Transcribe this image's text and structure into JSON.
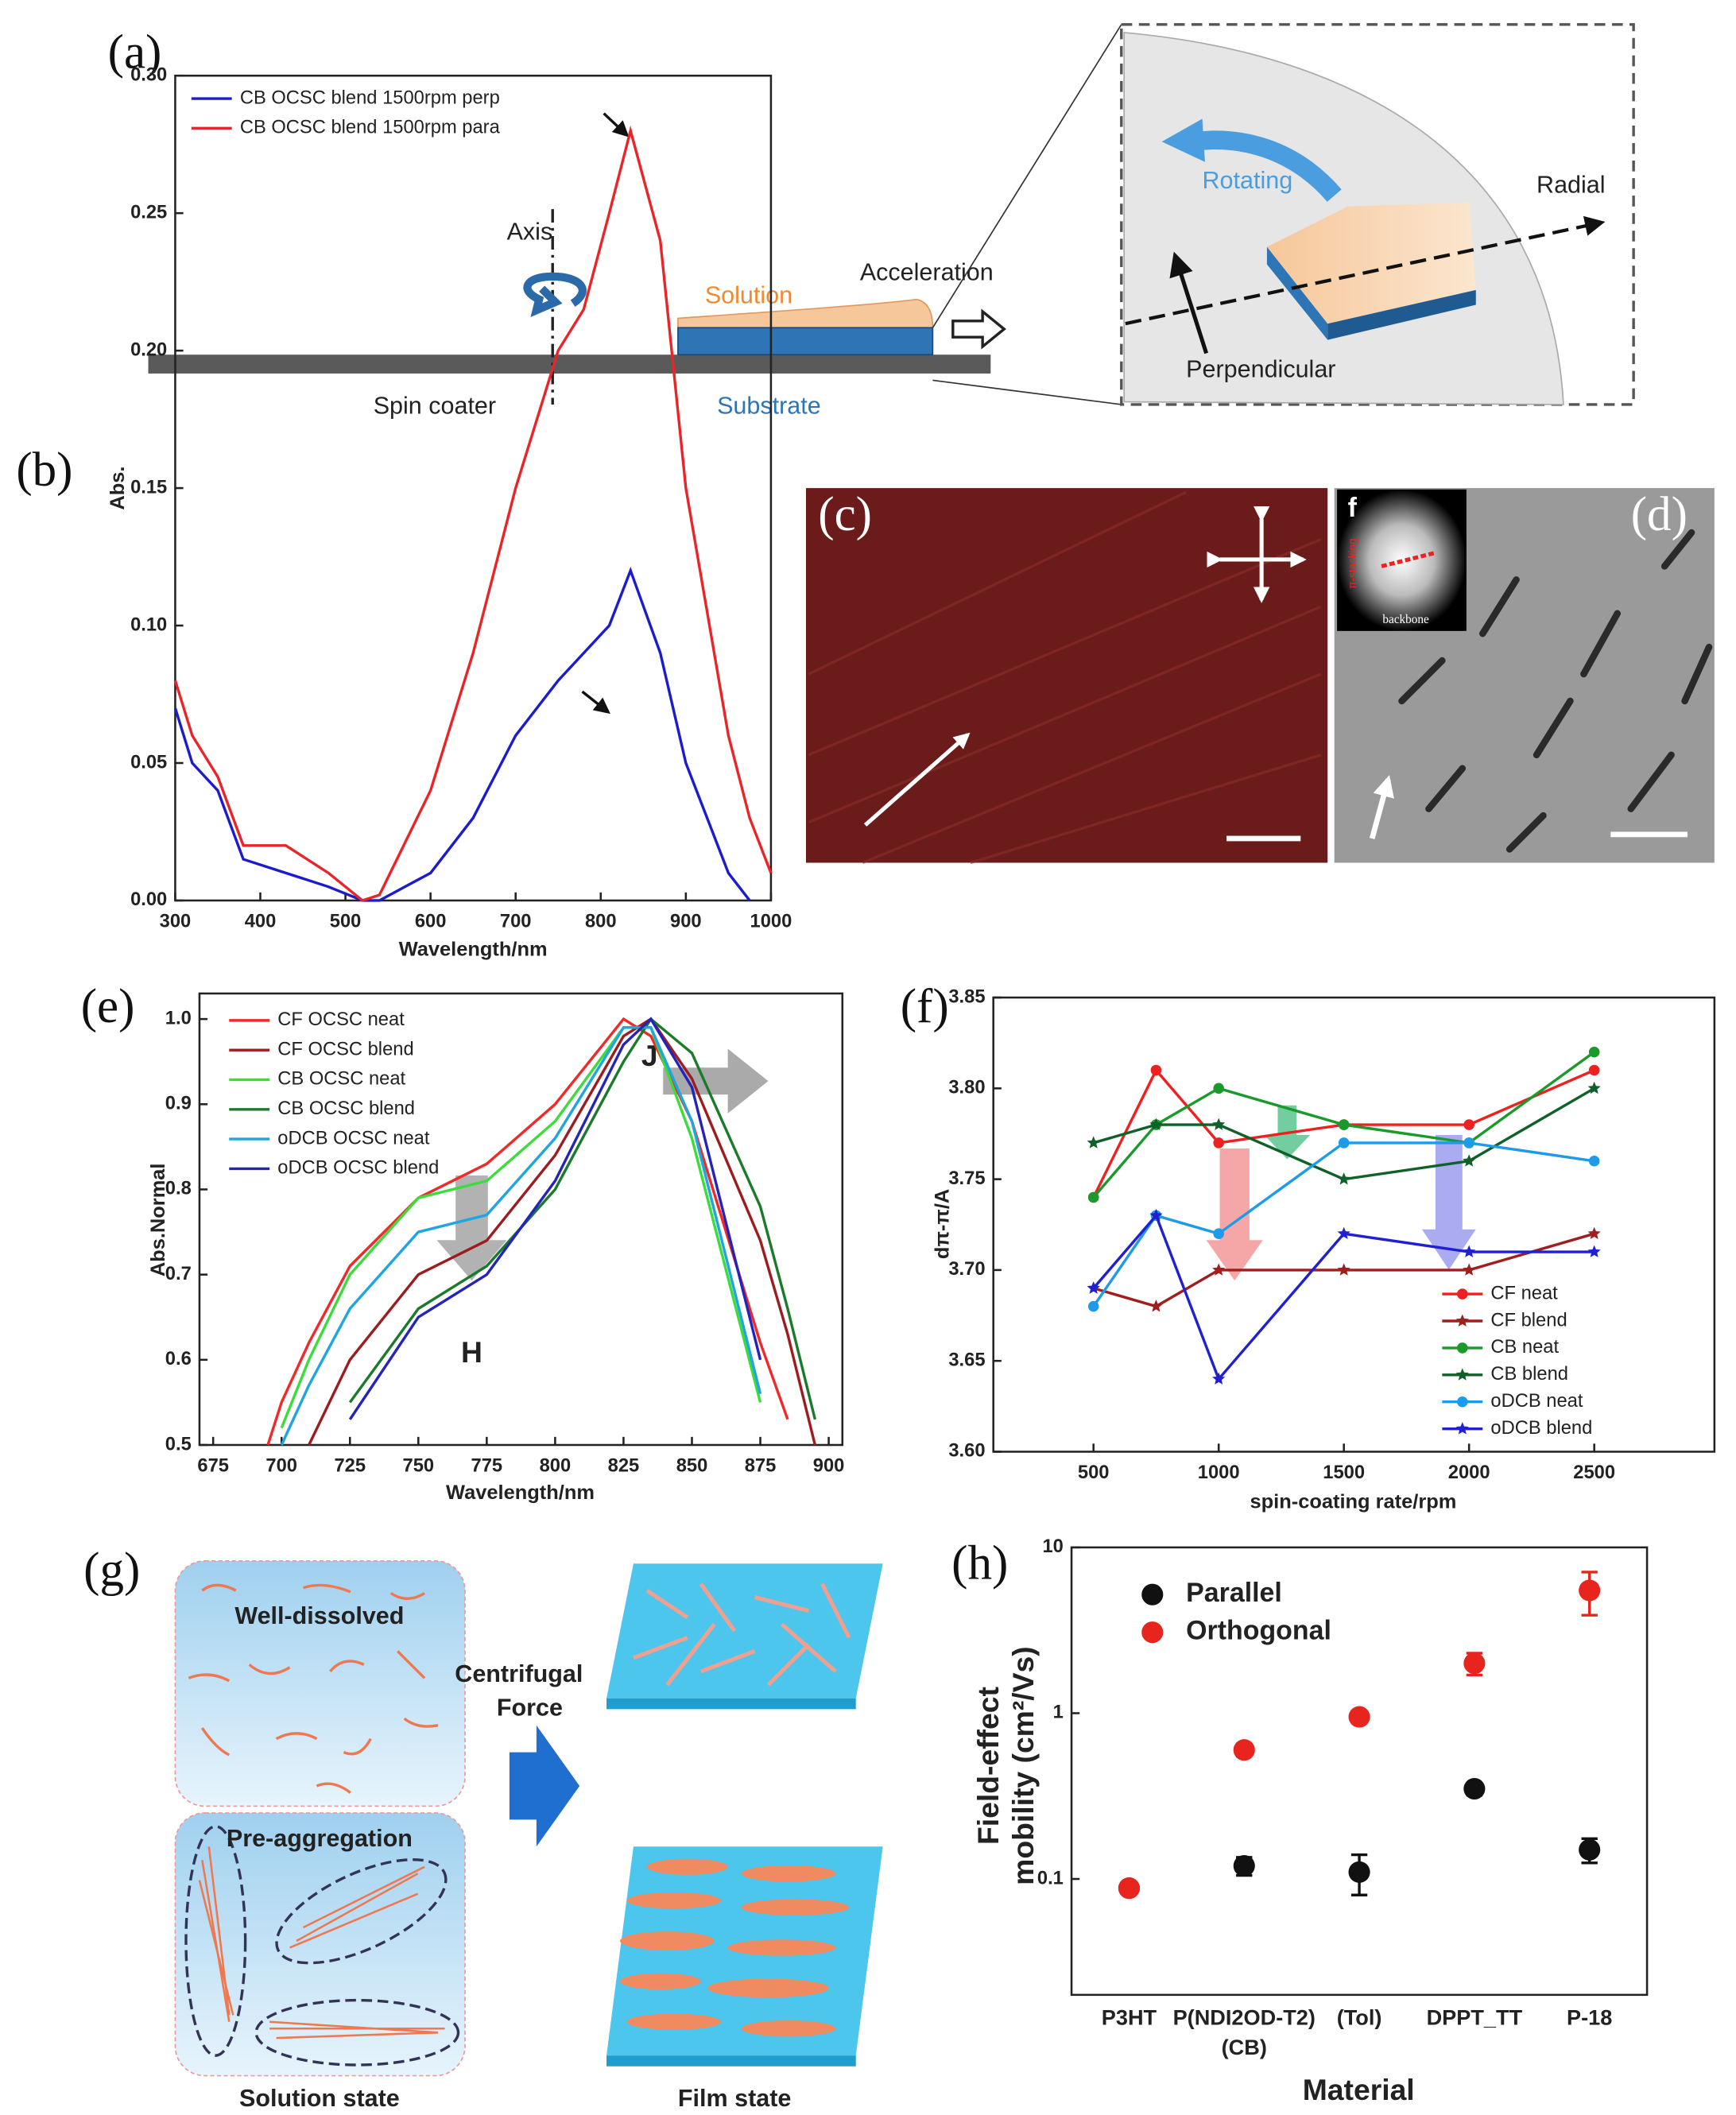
{
  "chart_data": [
    {
      "type": "line",
      "panel": "(b)",
      "xlabel": "Wavelength/nm",
      "ylabel": "Abs.",
      "x": [
        300,
        320,
        350,
        380,
        430,
        480,
        520,
        540,
        600,
        650,
        700,
        750,
        780,
        810,
        835,
        870,
        900,
        950,
        975,
        1000
      ],
      "series": [
        {
          "name": "CB OCSC blend 1500rpm perp",
          "color": "#1c1ccc",
          "values": [
            0.07,
            0.05,
            0.04,
            0.015,
            0.01,
            0.005,
            0,
            0,
            0.01,
            0.03,
            0.06,
            0.08,
            0.09,
            0.1,
            0.12,
            0.09,
            0.05,
            0.01,
            0,
            null
          ]
        },
        {
          "name": "CB OCSC blend 1500rpm para",
          "color": "#e8262a",
          "values": [
            0.08,
            0.06,
            0.045,
            0.02,
            0.02,
            0.01,
            0,
            0.002,
            0.04,
            0.09,
            0.15,
            0.2,
            0.215,
            0.25,
            0.28,
            0.24,
            0.15,
            0.06,
            0.03,
            0.01
          ]
        }
      ],
      "xlim": [
        300,
        1000
      ],
      "ylim": [
        0,
        0.3
      ],
      "xticks": [
        300,
        400,
        500,
        600,
        700,
        800,
        900,
        1000
      ],
      "yticks": [
        {
          "value": 0,
          "label": "0.00"
        },
        0.05,
        {
          "value": 0.1,
          "label": "0.10"
        },
        0.15,
        {
          "value": 0.2,
          "label": "0.20"
        },
        0.25,
        {
          "value": 0.3,
          "label": "0.30"
        }
      ],
      "legend": "upper left"
    },
    {
      "type": "line",
      "panel": "(e)",
      "xlabel": "Wavelength/nm",
      "ylabel": "Abs.Normal",
      "annotations": [
        "J",
        "H"
      ],
      "x": [
        695,
        700,
        710,
        725,
        750,
        775,
        800,
        825,
        835,
        850,
        875,
        885,
        895
      ],
      "series": [
        {
          "name": "CF OCSC neat",
          "color": "#ee2a2a",
          "values": [
            0.5,
            0.55,
            0.62,
            0.71,
            0.79,
            0.83,
            0.9,
            1,
            0.98,
            0.88,
            0.62,
            0.53,
            null
          ]
        },
        {
          "name": "CF OCSC blend",
          "color": "#9b1d20",
          "values": [
            null,
            null,
            0.5,
            0.6,
            0.7,
            0.74,
            0.84,
            0.98,
            1,
            0.93,
            0.74,
            0.63,
            0.5
          ]
        },
        {
          "name": "CB OCSC neat",
          "color": "#3ddc3d",
          "values": [
            null,
            0.52,
            0.6,
            0.7,
            0.79,
            0.81,
            0.88,
            0.99,
            0.99,
            0.86,
            0.55,
            null,
            null
          ]
        },
        {
          "name": "CB OCSC blend",
          "color": "#1c7a2c",
          "values": [
            null,
            null,
            null,
            0.55,
            0.66,
            0.71,
            0.8,
            0.95,
            1,
            0.96,
            0.78,
            0.66,
            0.53
          ]
        },
        {
          "name": "oDCB OCSC neat",
          "color": "#1fa5e0",
          "values": [
            null,
            0.5,
            0.57,
            0.66,
            0.75,
            0.77,
            0.86,
            0.99,
            0.99,
            0.88,
            0.56,
            null,
            null
          ]
        },
        {
          "name": "oDCB OCSC blend",
          "color": "#2424b8",
          "values": [
            null,
            null,
            null,
            0.53,
            0.65,
            0.7,
            0.81,
            0.97,
            1,
            0.92,
            0.6,
            null,
            null
          ]
        }
      ],
      "xlim": [
        670,
        905
      ],
      "ylim": [
        0.5,
        1.03
      ],
      "xticks": [
        675,
        700,
        725,
        750,
        775,
        800,
        825,
        850,
        875,
        900
      ],
      "yticks": [
        0.5,
        0.6,
        0.7,
        0.8,
        0.9,
        {
          "value": 1,
          "label": "1.0"
        }
      ],
      "legend": "upper left"
    },
    {
      "type": "line",
      "panel": "(f)",
      "xlabel": "spin-coating rate/rpm",
      "ylabel": "dπ-π/A",
      "x": [
        500,
        750,
        1000,
        1500,
        2000,
        2500
      ],
      "series": [
        {
          "name": "CF neat",
          "color": "#ee2020",
          "marker": "circle",
          "values": [
            3.74,
            3.81,
            3.77,
            3.78,
            3.78,
            3.81
          ]
        },
        {
          "name": "CF blend",
          "color": "#a01e1e",
          "marker": "star",
          "values": [
            3.69,
            3.68,
            3.7,
            3.7,
            3.7,
            3.72
          ]
        },
        {
          "name": "CB neat",
          "color": "#1a9a2a",
          "marker": "circle",
          "values": [
            3.74,
            3.78,
            3.8,
            3.78,
            3.77,
            3.82
          ]
        },
        {
          "name": "CB blend",
          "color": "#10602a",
          "marker": "star",
          "values": [
            3.77,
            3.78,
            3.78,
            3.75,
            3.76,
            3.8
          ]
        },
        {
          "name": "oDCB neat",
          "color": "#1e9be8",
          "marker": "circle",
          "values": [
            3.68,
            3.73,
            3.72,
            3.77,
            3.77,
            3.76
          ]
        },
        {
          "name": "oDCB blend",
          "color": "#2020d0",
          "marker": "star",
          "values": [
            3.69,
            3.73,
            3.64,
            3.72,
            3.71,
            3.71
          ]
        }
      ],
      "xlim": [
        100,
        2980
      ],
      "ylim": [
        3.6,
        3.85
      ],
      "xticks": [
        500,
        1000,
        1500,
        2000,
        2500
      ],
      "yticks": [
        {
          "value": 3.6,
          "label": "3.60"
        },
        3.65,
        {
          "value": 3.7,
          "label": "3.70"
        },
        3.75,
        {
          "value": 3.8,
          "label": "3.80"
        },
        3.85
      ],
      "legend": "lower right"
    },
    {
      "type": "scatter",
      "panel": "(h)",
      "xlabel": "Material",
      "ylabel": [
        "Field-effect",
        "mobility (cm²/Vs)"
      ],
      "log_y": true,
      "categories": [
        "P3HT",
        "P(NDI2OD-T2)",
        "(Tol)",
        "DPPT_TT",
        "P-18"
      ],
      "category_note": "(CB)",
      "series": [
        {
          "name": "Parallel",
          "color": "#111111",
          "values": [
            0.088,
            0.12,
            0.11,
            0.35,
            0.15
          ],
          "errors": [
            0.005,
            0.015,
            0.03,
            0.03,
            0.025
          ]
        },
        {
          "name": "Orthogonal",
          "color": "#e8241e",
          "values": [
            0.088,
            0.6,
            0.95,
            2,
            5.5
          ],
          "errors": [
            0.005,
            0.05,
            0.05,
            0.3,
            1.6
          ]
        }
      ],
      "ylim": [
        0.02,
        10
      ],
      "yticks": [
        0.1,
        1,
        10
      ],
      "legend": "upper left"
    }
  ],
  "diagram_a": {
    "panel": "(a)",
    "axis": "Axis",
    "solution": "Solution",
    "acceleration": "Acceleration",
    "spin_coater": "Spin coater",
    "substrate": "Substrate",
    "rotating": "Rotating",
    "radial": "Radial",
    "perpendicular": "Perpendicular"
  },
  "micrographs": {
    "panel_c": "(c)",
    "panel_d": "(d)",
    "inset": "f",
    "inset_axis": "backbone",
    "inset_stacking": "π-stacking"
  },
  "diagram_g": {
    "panel": "(g)",
    "well_dissolved": "Well-dissolved",
    "pre_aggregation": "Pre-aggregation",
    "force": [
      "Centrifugal",
      "Force"
    ],
    "solution_state": "Solution state",
    "film_state": "Film state"
  }
}
